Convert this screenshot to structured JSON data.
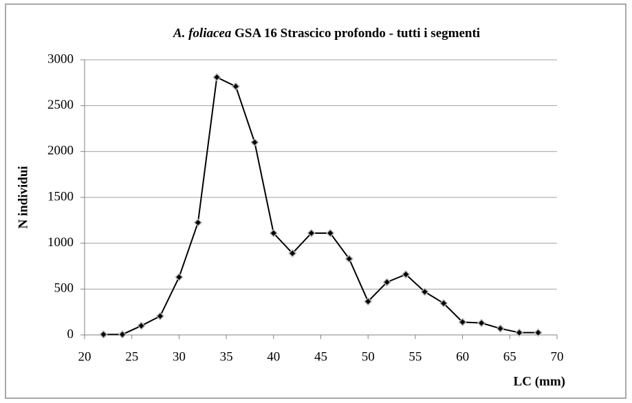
{
  "chart_data": {
    "type": "line",
    "title": [
      "A. foliacea",
      "GSA 16 Strascico profondo  - tutti i segmenti"
    ],
    "xlabel": "LC (mm)",
    "ylabel": "N individui",
    "x": [
      22,
      24,
      26,
      28,
      30,
      32,
      34,
      36,
      38,
      40,
      42,
      44,
      46,
      48,
      50,
      52,
      54,
      56,
      58,
      60,
      62,
      64,
      66,
      68
    ],
    "series": [
      {
        "color": "#000000",
        "values": [
          5,
          5,
          100,
          205,
          630,
          1225,
          2810,
          2710,
          2100,
          1110,
          890,
          1110,
          1110,
          830,
          365,
          575,
          660,
          470,
          345,
          140,
          130,
          70,
          25,
          25
        ]
      }
    ],
    "xlim": [
      20,
      70
    ],
    "xticks": [
      20,
      25,
      30,
      35,
      40,
      45,
      50,
      55,
      60,
      65,
      70
    ],
    "ylim": [
      0,
      3000
    ],
    "yticks": [
      0,
      500,
      1000,
      1500,
      2000,
      2500,
      3000
    ],
    "grid": true
  }
}
